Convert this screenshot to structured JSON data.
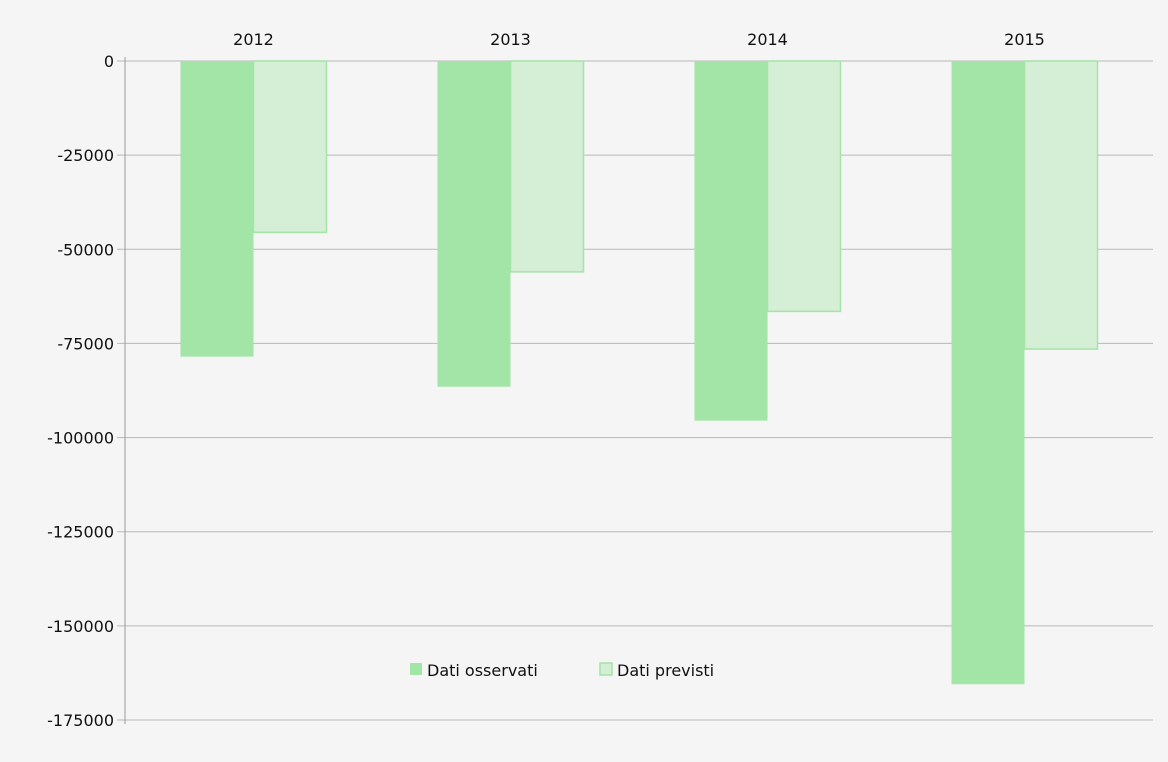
{
  "chart_data": {
    "type": "bar",
    "categories": [
      "2012",
      "2013",
      "2014",
      "2015"
    ],
    "series": [
      {
        "name": "Dati osservati",
        "values": [
          -78500,
          -86500,
          -95500,
          -165500
        ],
        "color": "#a3e4a7"
      },
      {
        "name": "Dati previsti",
        "values": [
          -45500,
          -56000,
          -66500,
          -76500
        ],
        "color": "#d5eed6",
        "stroke": "#a3e4a7"
      }
    ],
    "yticks": [
      "0",
      "-25000",
      "-50000",
      "-75000",
      "-100000",
      "-125000",
      "-150000",
      "-175000"
    ],
    "ylim": [
      -175000,
      0
    ],
    "title": "",
    "xlabel": "",
    "ylabel": "",
    "grid": true,
    "legend_position": "bottom-center",
    "category_axis_position": "top"
  }
}
